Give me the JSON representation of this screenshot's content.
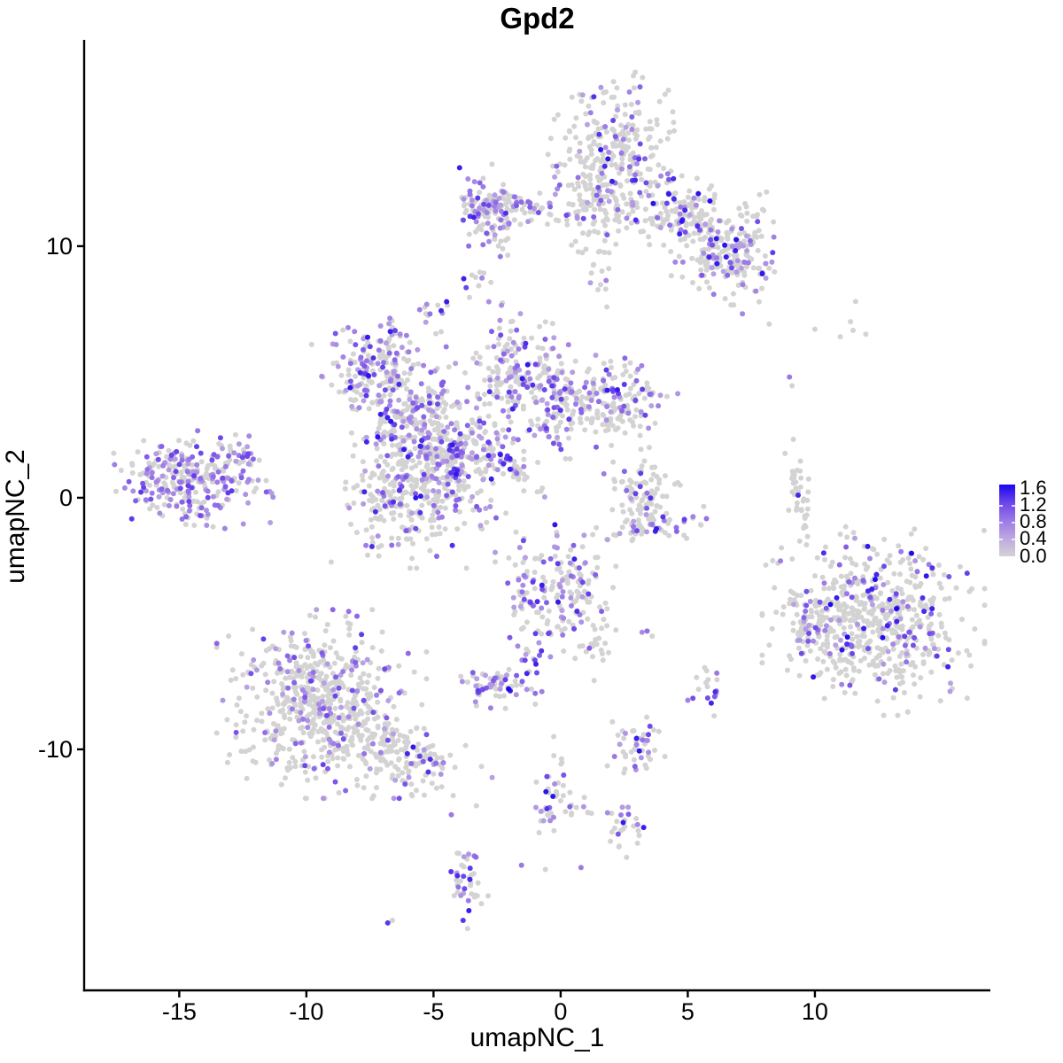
{
  "page": {
    "background": "#ffffff"
  },
  "chart_data": {
    "type": "scatter",
    "title": "Gpd2",
    "xlabel": "umapNC_1",
    "ylabel": "umapNC_2",
    "xlim": [
      -18.74,
      16.9
    ],
    "ylim": [
      -19.58,
      18.2
    ],
    "x_ticks": [
      -15,
      -10,
      -5,
      0,
      5,
      10
    ],
    "y_ticks": [
      -10,
      0,
      10
    ],
    "grid": false,
    "point_radius": 3,
    "point_base_color": "#d3d3d3",
    "color_stops": [
      [
        0,
        "#d3d3d3"
      ],
      [
        0.25,
        "#bda8e1"
      ],
      [
        0.5,
        "#9b79e6"
      ],
      [
        0.75,
        "#6b45ea"
      ],
      [
        1,
        "#1b06ee"
      ]
    ],
    "legend": {
      "ticks": [
        "1.6",
        "1.2",
        "0.8",
        "0.4",
        "0.0"
      ],
      "value_range": [
        0.0,
        1.6
      ],
      "low_color": "#d3d3d3",
      "high_color": "#1b06ee",
      "position": "right"
    },
    "clusters": [
      {
        "name": "top-main-blob",
        "cx": 2.0,
        "cy": 13.4,
        "sx": 1.0,
        "sy": 1.45,
        "rot": -10,
        "n": 320,
        "frac": 0.2
      },
      {
        "name": "top-neck-down",
        "cx": 1.3,
        "cy": 9.7,
        "sx": 0.35,
        "sy": 0.95,
        "rot": 0,
        "n": 25,
        "frac": 0.15
      },
      {
        "name": "top-arm-right-upper",
        "cx": 4.9,
        "cy": 11.1,
        "sx": 1.25,
        "sy": 0.65,
        "rot": -28,
        "n": 180,
        "frac": 0.22
      },
      {
        "name": "top-arm-right-lower",
        "cx": 6.6,
        "cy": 9.5,
        "sx": 0.95,
        "sy": 0.7,
        "rot": -25,
        "n": 170,
        "frac": 0.28
      },
      {
        "name": "top-right-tip",
        "cx": 7.6,
        "cy": 11.4,
        "sx": 0.45,
        "sy": 0.4,
        "rot": 0,
        "n": 12,
        "frac": 0.1
      },
      {
        "name": "top-left-string",
        "cx": -1.3,
        "cy": 11.5,
        "sx": 1.7,
        "sy": 0.3,
        "rot": -4,
        "n": 85,
        "frac": 0.25
      },
      {
        "name": "top-left-blob",
        "cx": -2.9,
        "cy": 11.4,
        "sx": 0.55,
        "sy": 0.75,
        "rot": 10,
        "n": 110,
        "frac": 0.4
      },
      {
        "name": "neck-mid",
        "cx": -2.2,
        "cy": 6.6,
        "sx": 0.25,
        "sy": 0.75,
        "rot": 0,
        "n": 14,
        "frac": 0.2
      },
      {
        "name": "small-spot-upper",
        "cx": -3.3,
        "cy": 8.6,
        "sx": 0.3,
        "sy": 0.42,
        "rot": 0,
        "n": 10,
        "frac": 0.35
      },
      {
        "name": "small-purple-spot",
        "cx": -5.0,
        "cy": 7.4,
        "sx": 0.3,
        "sy": 0.45,
        "rot": 0,
        "n": 13,
        "frac": 0.65
      },
      {
        "name": "central-upper-left",
        "cx": -7.4,
        "cy": 5.0,
        "sx": 0.9,
        "sy": 0.8,
        "rot": 25,
        "n": 180,
        "frac": 0.45
      },
      {
        "name": "central-ul-string",
        "cx": -6.6,
        "cy": 5.2,
        "sx": 0.18,
        "sy": 1.1,
        "rot": 0,
        "n": 25,
        "frac": 0.25
      },
      {
        "name": "central-arm-diagonal",
        "cx": -5.8,
        "cy": 3.2,
        "sx": 1.05,
        "sy": 0.55,
        "rot": 38,
        "n": 150,
        "frac": 0.35
      },
      {
        "name": "central-knot",
        "cx": -4.2,
        "cy": 1.7,
        "sx": 1.1,
        "sy": 1.0,
        "rot": 0,
        "n": 260,
        "frac": 0.35
      },
      {
        "name": "central-lower-blob",
        "cx": -5.9,
        "cy": 0.2,
        "sx": 1.25,
        "sy": 1.2,
        "rot": 0,
        "n": 300,
        "frac": 0.22
      },
      {
        "name": "central-upper-arm",
        "cx": -1.9,
        "cy": 4.7,
        "sx": 0.75,
        "sy": 1.05,
        "rot": -12,
        "n": 140,
        "frac": 0.3
      },
      {
        "name": "central-right-blob",
        "cx": -0.2,
        "cy": 3.8,
        "sx": 0.7,
        "sy": 1.0,
        "rot": 0,
        "n": 140,
        "frac": 0.35
      },
      {
        "name": "central-right-ext",
        "cx": 2.1,
        "cy": 3.9,
        "sx": 1.0,
        "sy": 0.75,
        "rot": 12,
        "n": 160,
        "frac": 0.3
      },
      {
        "name": "central-tail-diagonal",
        "cx": -1.9,
        "cy": 1.2,
        "sx": 0.95,
        "sy": 0.14,
        "rot": -42,
        "n": 42,
        "frac": 0.35
      },
      {
        "name": "left-main",
        "cx": -14.5,
        "cy": 0.8,
        "sx": 1.3,
        "sy": 0.75,
        "rot": -6,
        "n": 280,
        "frac": 0.5,
        "tmin": 0.3,
        "tmax": 0.8
      },
      {
        "name": "left-tip",
        "cx": -12.7,
        "cy": 1.6,
        "sx": 0.5,
        "sy": 0.28,
        "rot": -28,
        "n": 22,
        "frac": 0.5,
        "tmin": 0.3,
        "tmax": 0.8
      },
      {
        "name": "crescent-body",
        "cx": 3.2,
        "cy": 0.3,
        "sx": 0.6,
        "sy": 0.8,
        "rot": 0,
        "n": 85,
        "frac": 0.15
      },
      {
        "name": "crescent-bottom",
        "cx": 3.4,
        "cy": -1.15,
        "sx": 1.05,
        "sy": 0.3,
        "rot": 8,
        "n": 55,
        "frac": 0.45,
        "tmax": 1.0
      },
      {
        "name": "thin-vertical-right",
        "cx": 9.4,
        "cy": 0.1,
        "sx": 0.2,
        "sy": 0.95,
        "rot": 7,
        "n": 40,
        "frac": 0.08
      },
      {
        "name": "bottom-right-main",
        "cx": 12.3,
        "cy": -4.9,
        "sx": 1.75,
        "sy": 1.5,
        "rot": 0,
        "n": 600,
        "frac": 0.22,
        "tmax": 1.0
      },
      {
        "name": "bottom-right-left-blob",
        "cx": 9.6,
        "cy": -5.1,
        "sx": 0.45,
        "sy": 0.7,
        "rot": 0,
        "n": 48,
        "frac": 0.25
      },
      {
        "name": "bottom-left-main",
        "cx": -9.4,
        "cy": -8.2,
        "sx": 1.65,
        "sy": 1.5,
        "rot": 0,
        "n": 620,
        "frac": 0.2,
        "tmax": 0.8
      },
      {
        "name": "bottom-left-tail",
        "cx": -6.0,
        "cy": -10.3,
        "sx": 1.35,
        "sy": 0.55,
        "rot": -22,
        "n": 140,
        "frac": 0.1
      },
      {
        "name": "center-bottom",
        "cx": -0.2,
        "cy": -3.7,
        "sx": 0.95,
        "sy": 1.05,
        "rot": 0,
        "n": 180,
        "frac": 0.38
      },
      {
        "name": "center-bottom-left-leg",
        "cx": -1.3,
        "cy": -6.1,
        "sx": 0.25,
        "sy": 0.85,
        "rot": 12,
        "n": 22,
        "frac": 0.45
      },
      {
        "name": "center-bottom-right-leg",
        "cx": 1.45,
        "cy": -5.5,
        "sx": 0.3,
        "sy": 0.8,
        "rot": -8,
        "n": 26,
        "frac": 0.3
      },
      {
        "name": "small-blob-mid",
        "cx": -2.7,
        "cy": -7.5,
        "sx": 0.65,
        "sy": 0.38,
        "rot": 0,
        "n": 60,
        "frac": 0.45
      },
      {
        "name": "purple-small-right",
        "cx": 5.9,
        "cy": -7.6,
        "sx": 0.28,
        "sy": 0.45,
        "rot": 0,
        "n": 18,
        "frac": 0.55
      },
      {
        "name": "small-cluster-low",
        "cx": 2.9,
        "cy": -9.8,
        "sx": 0.5,
        "sy": 0.55,
        "rot": 0,
        "n": 45,
        "frac": 0.3
      },
      {
        "name": "string-bottom",
        "cx": -0.35,
        "cy": -11.9,
        "sx": 0.28,
        "sy": 1.15,
        "rot": -10,
        "n": 40,
        "frac": 0.35
      },
      {
        "name": "string-side",
        "cx": 0.9,
        "cy": -12.4,
        "sx": 0.55,
        "sy": 0.25,
        "rot": 0,
        "n": 12,
        "frac": 0.3
      },
      {
        "name": "small-cluster-lowest",
        "cx": 2.55,
        "cy": -13.3,
        "sx": 0.45,
        "sy": 0.4,
        "rot": 0,
        "n": 26,
        "frac": 0.4
      },
      {
        "name": "vertical-bottom",
        "cx": -3.7,
        "cy": -15.2,
        "sx": 0.3,
        "sy": 1.05,
        "rot": 8,
        "n": 40,
        "frac": 0.45
      }
    ],
    "singletons": [
      [
        9.0,
        4.8,
        0.5
      ],
      [
        9.1,
        4.45,
        0
      ],
      [
        8.2,
        6.9,
        0
      ],
      [
        10.0,
        6.7,
        0
      ],
      [
        11.0,
        6.4,
        0
      ],
      [
        11.4,
        7.0,
        0
      ],
      [
        11.5,
        6.65,
        0
      ],
      [
        11.6,
        7.8,
        0
      ],
      [
        12.0,
        6.5,
        0
      ],
      [
        -4.7,
        6.6,
        0
      ],
      [
        -4.5,
        6.0,
        0.5
      ],
      [
        -2.05,
        -7.6,
        1.0
      ],
      [
        3.4,
        -5.3,
        0.55
      ],
      [
        3.6,
        -5.5,
        0
      ],
      [
        3.2,
        -5.35,
        0.4
      ],
      [
        0.8,
        -14.7,
        0.5
      ],
      [
        -4.3,
        -12.6,
        0.5
      ],
      [
        5.0,
        -8.05,
        0.45
      ],
      [
        -6.8,
        -16.9,
        0.8
      ],
      [
        -6.62,
        -16.8,
        0
      ]
    ]
  }
}
